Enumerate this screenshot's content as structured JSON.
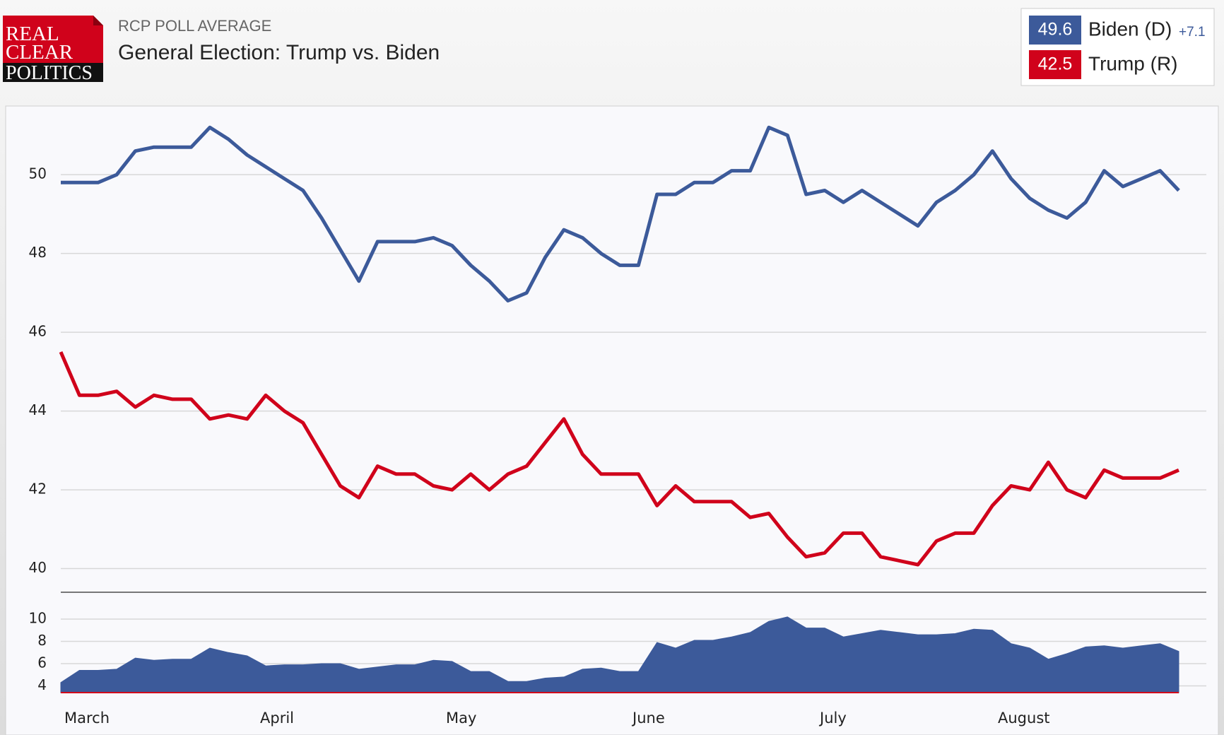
{
  "header": {
    "logo": [
      "REAL",
      "CLEAR",
      "POLITICS"
    ],
    "subtitle": "RCP POLL AVERAGE",
    "title": "General Election: Trump vs. Biden"
  },
  "chart_data": [
    {
      "type": "line",
      "months": [
        "March",
        "April",
        "May",
        "June",
        "July",
        "August"
      ],
      "ylim": [
        39.4,
        51.6
      ],
      "yticks": [
        40,
        42,
        44,
        46,
        48,
        50
      ],
      "grid": true,
      "legend_spread": {
        "value": 7.1,
        "label": "+7.1"
      },
      "series": [
        {
          "name": "Biden (D)",
          "color": "#3c5a9a",
          "values": [
            49.8,
            49.8,
            49.8,
            50.0,
            50.6,
            50.7,
            50.7,
            50.7,
            51.2,
            50.9,
            50.5,
            50.2,
            49.9,
            49.6,
            48.9,
            48.1,
            47.3,
            48.3,
            48.3,
            48.3,
            48.4,
            48.2,
            47.7,
            47.3,
            46.8,
            47.0,
            47.9,
            48.6,
            48.4,
            48.0,
            47.7,
            47.7,
            49.5,
            49.5,
            49.8,
            49.8,
            50.1,
            50.1,
            51.2,
            51.0,
            49.5,
            49.6,
            49.3,
            49.6,
            49.3,
            49.0,
            48.7,
            49.3,
            49.6,
            50.0,
            50.6,
            49.9,
            49.4,
            49.1,
            48.9,
            49.3,
            50.1,
            49.7,
            49.9,
            50.1,
            49.6
          ]
        },
        {
          "name": "Trump (R)",
          "color": "#d0021b",
          "values": [
            45.5,
            44.4,
            44.4,
            44.5,
            44.1,
            44.4,
            44.3,
            44.3,
            43.8,
            43.9,
            43.8,
            44.4,
            44.0,
            43.7,
            42.9,
            42.1,
            41.8,
            42.6,
            42.4,
            42.4,
            42.1,
            42.0,
            42.4,
            42.0,
            42.4,
            42.6,
            43.2,
            43.8,
            42.9,
            42.4,
            42.4,
            42.4,
            41.6,
            42.1,
            41.7,
            41.7,
            41.7,
            41.3,
            41.4,
            40.8,
            40.3,
            40.4,
            40.9,
            40.9,
            40.3,
            40.2,
            40.1,
            40.7,
            40.9,
            40.9,
            41.6,
            42.1,
            42.0,
            42.7,
            42.0,
            41.8,
            42.5,
            42.3,
            42.3,
            42.3,
            42.5
          ]
        }
      ]
    },
    {
      "type": "area",
      "color": "#3c5a9a",
      "ylim": [
        3.4,
        10.7
      ],
      "yticks": [
        4,
        6,
        8,
        10
      ],
      "grid": true,
      "values": [
        4.3,
        5.4,
        5.4,
        5.5,
        6.5,
        6.3,
        6.4,
        6.4,
        7.4,
        7.0,
        6.7,
        5.8,
        5.9,
        5.9,
        6.0,
        6.0,
        5.5,
        5.7,
        5.9,
        5.9,
        6.3,
        6.2,
        5.3,
        5.3,
        4.4,
        4.4,
        4.7,
        4.8,
        5.5,
        5.6,
        5.3,
        5.3,
        7.9,
        7.4,
        8.1,
        8.1,
        8.4,
        8.8,
        9.8,
        10.2,
        9.2,
        9.2,
        8.4,
        8.7,
        9.0,
        8.8,
        8.6,
        8.6,
        8.7,
        9.1,
        9.0,
        7.8,
        7.4,
        6.4,
        6.9,
        7.5,
        7.6,
        7.4,
        7.6,
        7.8,
        7.1
      ]
    }
  ]
}
